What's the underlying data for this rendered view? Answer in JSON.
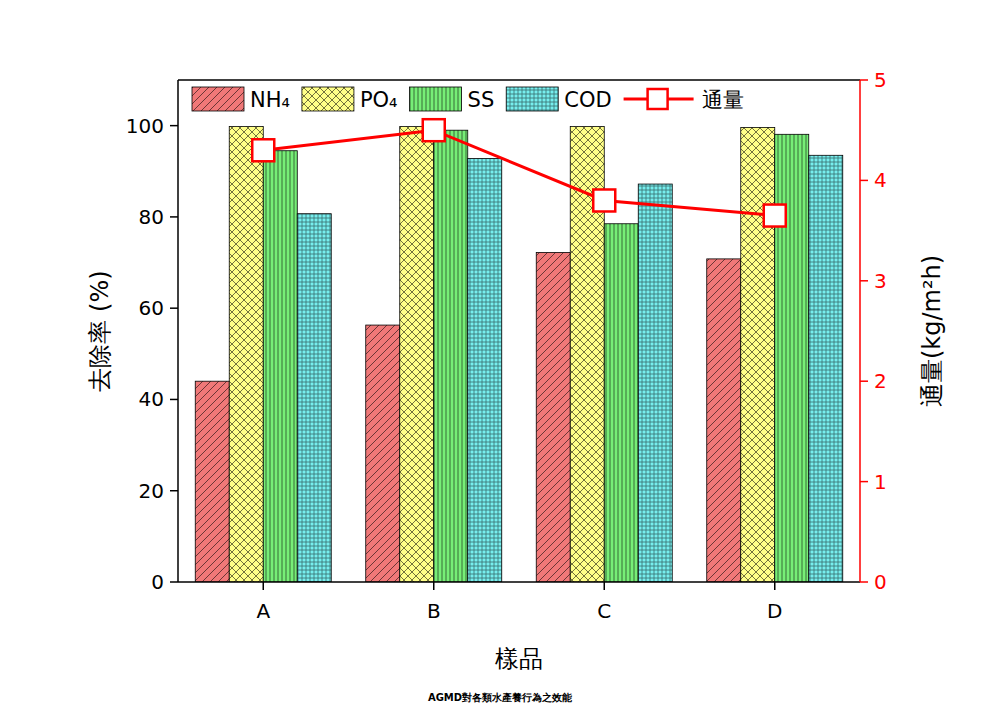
{
  "chart_data": {
    "type": "bar",
    "title": "AGMD對各類水產養行為之效能",
    "x_label": "樣品",
    "y_label": "去除率 (%)",
    "y2_label": "通量(kg/m²h)",
    "categories": [
      "A",
      "B",
      "C",
      "D"
    ],
    "series": [
      {
        "name": "NH₄",
        "color": "#f07878",
        "values": [
          44.0,
          56.3,
          72.2,
          70.8
        ]
      },
      {
        "name": "PO₄",
        "color": "#ffff88",
        "values": [
          99.8,
          99.8,
          99.8,
          99.6
        ]
      },
      {
        "name": "SS",
        "color": "#77ee77",
        "values": [
          94.5,
          99.0,
          78.5,
          98.1
        ]
      },
      {
        "name": "COD",
        "color": "#77eeee",
        "values": [
          80.7,
          92.8,
          87.2,
          93.5
        ]
      },
      {
        "name": "通量",
        "color": "#ff0000",
        "type": "line",
        "marker": "square",
        "axis": "y2",
        "values": [
          4.3,
          4.5,
          3.8,
          3.65
        ]
      }
    ],
    "ylim": [
      0,
      110
    ],
    "yticks": [
      0,
      20,
      40,
      60,
      80,
      100
    ],
    "y2lim": [
      0,
      5
    ],
    "y2ticks": [
      0,
      1,
      2,
      3,
      4,
      5
    ],
    "legend": "top",
    "grid": false
  }
}
